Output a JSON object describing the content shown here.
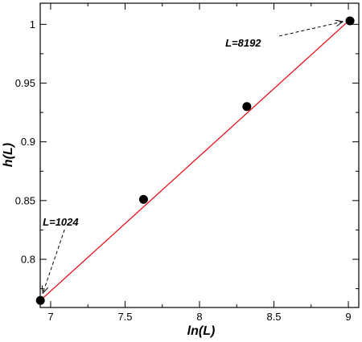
{
  "chart_data": {
    "type": "scatter",
    "xlabel": "ln(L)",
    "ylabel": "h(L)",
    "xlim": [
      6.93,
      9.07
    ],
    "ylim": [
      0.759,
      1.018
    ],
    "xticks": [
      7,
      7.5,
      8,
      8.5,
      9
    ],
    "xtick_labels": [
      "7",
      "7.5",
      "8",
      "8.5",
      "9"
    ],
    "yticks": [
      0.8,
      0.85,
      0.9,
      0.95,
      1
    ],
    "ytick_labels": [
      "0.8",
      "0.85",
      "0.9",
      "0.95",
      "1"
    ],
    "grid": false,
    "points": [
      {
        "x": 6.931,
        "y": 0.765
      },
      {
        "x": 7.624,
        "y": 0.851
      },
      {
        "x": 8.318,
        "y": 0.93
      },
      {
        "x": 9.011,
        "y": 1.003
      }
    ],
    "fit_line": {
      "x": [
        6.931,
        9.011
      ],
      "y": [
        0.765,
        1.004
      ],
      "color": "#e8000b"
    },
    "annotations": [
      {
        "text": "L=1024",
        "target": {
          "x": 6.931,
          "y": 0.765
        }
      },
      {
        "text": "L=8192",
        "target": {
          "x": 9.011,
          "y": 1.003
        }
      }
    ],
    "colors": {
      "points": "#000000",
      "axes": "#000000",
      "fit": "#e8000b"
    }
  }
}
